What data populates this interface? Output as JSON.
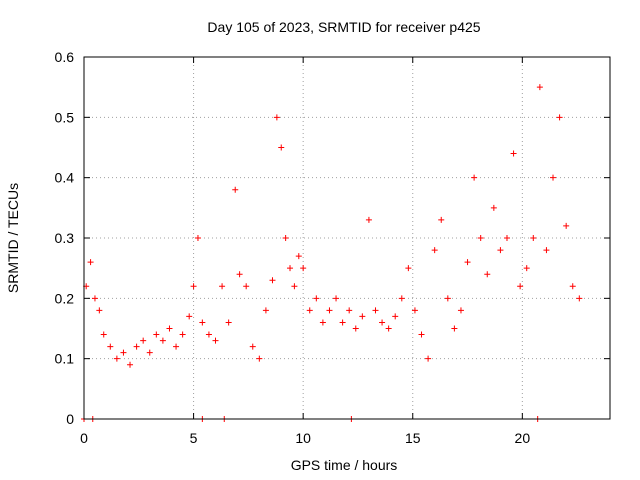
{
  "chart_data": {
    "type": "scatter",
    "title": "Day 105 of 2023, SRMTID for receiver p425",
    "xlabel": "GPS time / hours",
    "ylabel": "SRMTID / TECUs",
    "xlim": [
      0,
      24
    ],
    "ylim": [
      0,
      0.6
    ],
    "x_ticks": [
      0,
      5,
      10,
      15,
      20
    ],
    "x_tick_labels": [
      "0",
      "5",
      "10",
      "15",
      "20"
    ],
    "y_ticks": [
      0,
      0.1,
      0.2,
      0.3,
      0.4,
      0.5,
      0.6
    ],
    "y_tick_labels": [
      "0",
      "0.1",
      "0.2",
      "0.3",
      "0.4",
      "0.5",
      "0.6"
    ],
    "grid": true,
    "marker": "+",
    "marker_color": "#ff0000",
    "x_range_of_data": [
      0,
      22.7
    ],
    "series": [
      {
        "name": "SRMTID",
        "x": [
          0.1,
          0.3,
          0.5,
          0.7,
          0.9,
          1.2,
          1.5,
          1.8,
          2.1,
          2.4,
          2.7,
          3.0,
          3.3,
          3.6,
          3.9,
          4.2,
          4.5,
          4.8,
          5.0,
          5.2,
          5.4,
          5.7,
          6.0,
          6.3,
          6.6,
          6.9,
          7.1,
          7.4,
          7.7,
          8.0,
          8.3,
          8.6,
          8.8,
          9.0,
          9.2,
          9.4,
          9.6,
          9.8,
          10.0,
          10.3,
          10.6,
          10.9,
          11.2,
          11.5,
          11.8,
          12.1,
          12.4,
          12.7,
          13.0,
          13.3,
          13.6,
          13.9,
          14.2,
          14.5,
          14.8,
          15.1,
          15.4,
          15.7,
          16.0,
          16.3,
          16.6,
          16.9,
          17.2,
          17.5,
          17.8,
          18.1,
          18.4,
          18.7,
          19.0,
          19.3,
          19.6,
          19.9,
          20.2,
          20.5,
          20.8,
          21.1,
          21.4,
          21.7,
          22.0,
          22.3,
          22.6,
          0.0,
          0.4,
          5.4,
          6.4,
          12.2,
          20.7
        ],
        "y": [
          0.22,
          0.26,
          0.2,
          0.18,
          0.14,
          0.12,
          0.1,
          0.11,
          0.09,
          0.12,
          0.13,
          0.11,
          0.14,
          0.13,
          0.15,
          0.12,
          0.14,
          0.17,
          0.22,
          0.3,
          0.16,
          0.14,
          0.13,
          0.22,
          0.16,
          0.38,
          0.24,
          0.22,
          0.12,
          0.1,
          0.18,
          0.23,
          0.5,
          0.45,
          0.3,
          0.25,
          0.22,
          0.27,
          0.25,
          0.18,
          0.2,
          0.16,
          0.18,
          0.2,
          0.16,
          0.18,
          0.15,
          0.17,
          0.33,
          0.18,
          0.16,
          0.15,
          0.17,
          0.2,
          0.25,
          0.18,
          0.14,
          0.1,
          0.28,
          0.33,
          0.2,
          0.15,
          0.18,
          0.26,
          0.4,
          0.3,
          0.24,
          0.35,
          0.28,
          0.3,
          0.44,
          0.22,
          0.25,
          0.3,
          0.55,
          0.28,
          0.4,
          0.5,
          0.32,
          0.22,
          0.2,
          0.0,
          0.0,
          0.0,
          0.0,
          0.0,
          0.0
        ]
      }
    ]
  }
}
